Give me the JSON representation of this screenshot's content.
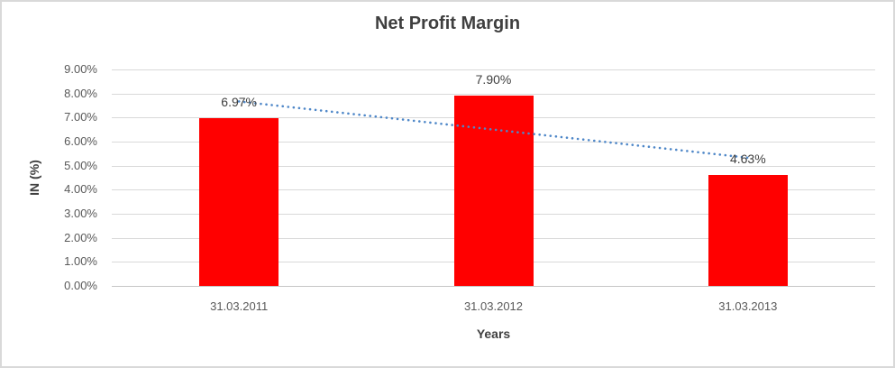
{
  "chart_data": {
    "type": "bar",
    "title": "Net Profit Margin",
    "categories": [
      "31.03.2011",
      "31.03.2012",
      "31.03.2013"
    ],
    "values": [
      6.97,
      7.9,
      4.63
    ],
    "data_labels": [
      "6.97%",
      "7.90%",
      "4.63%"
    ],
    "xlabel": "Years",
    "ylabel": "IN (%)",
    "ylim": [
      0,
      9
    ],
    "y_tick_step": 1,
    "y_tick_labels": [
      "0.00%",
      "1.00%",
      "2.00%",
      "3.00%",
      "4.00%",
      "5.00%",
      "6.00%",
      "7.00%",
      "8.00%",
      "9.00%"
    ],
    "grid": true,
    "legend": "none",
    "bar_color": "#FF0000",
    "trendline": {
      "type": "linear",
      "style": "dotted",
      "color": "#4E87C8",
      "start_value": 7.67,
      "end_value": 5.33
    },
    "colors": {
      "gridline": "#D9D9D9",
      "axis_line": "#C6C6C6",
      "tick_text": "#595959",
      "data_label_text": "#404040",
      "title_text": "#3F3F3F",
      "chart_border": "#D9D9D9",
      "background": "#FFFFFF"
    }
  }
}
